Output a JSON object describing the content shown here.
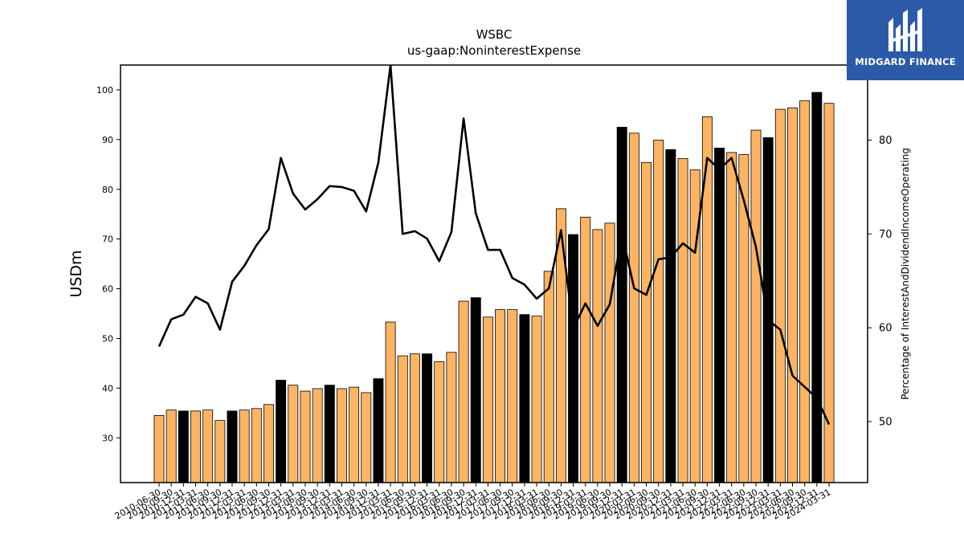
{
  "logo": {
    "name": "MIDGARD FINANCE"
  },
  "colors": {
    "bar_default": "#fdb462",
    "bar_highlight": "#000000",
    "line": "#000000"
  },
  "chart_data": {
    "type": "bar",
    "title": "WSBC",
    "subtitle": "us-gaap:NoninterestExpense",
    "ylabel": "USDm",
    "y2label": "Percentage of InterestAndDividendIncomeOperating",
    "ylim": [
      21,
      105
    ],
    "y2lim": [
      43.5,
      88
    ],
    "yticks": [
      30,
      40,
      50,
      60,
      70,
      80,
      90,
      100
    ],
    "y2ticks": [
      50,
      60,
      70,
      80
    ],
    "x": [
      "2010-06-30",
      "2010-09-30",
      "2010-12-31",
      "2011-03-31",
      "2011-06-30",
      "2011-09-30",
      "2011-12-31",
      "2012-03-31",
      "2012-06-30",
      "2012-09-30",
      "2012-12-31",
      "2013-03-31",
      "2013-06-30",
      "2013-09-30",
      "2013-12-31",
      "2014-03-31",
      "2014-06-30",
      "2014-09-30",
      "2014-12-31",
      "2015-03-31",
      "2015-06-30",
      "2015-09-30",
      "2015-12-31",
      "2016-03-31",
      "2016-06-30",
      "2016-09-30",
      "2016-12-31",
      "2017-03-31",
      "2017-06-30",
      "2017-09-30",
      "2017-12-31",
      "2018-03-31",
      "2018-06-30",
      "2018-09-30",
      "2018-12-31",
      "2019-03-31",
      "2019-06-30",
      "2019-09-30",
      "2019-12-31",
      "2020-03-31",
      "2020-06-30",
      "2020-09-30",
      "2020-12-31",
      "2021-03-31",
      "2021-06-30",
      "2021-09-30",
      "2021-12-31",
      "2022-03-31",
      "2022-06-30",
      "2022-09-30",
      "2022-12-31",
      "2023-03-31",
      "2023-06-30",
      "2023-09-30",
      "2023-12-31",
      "2024-03-31"
    ],
    "series": [
      {
        "kind": "bar",
        "values": [
          34.5,
          35.6,
          35.4,
          35.4,
          35.6,
          33.5,
          35.4,
          35.6,
          35.9,
          36.7,
          41.6,
          40.6,
          39.4,
          39.9,
          40.6,
          39.9,
          40.2,
          39.1,
          41.9,
          53.3,
          46.5,
          46.9,
          46.9,
          45.3,
          47.2,
          57.5,
          58.2,
          54.3,
          55.8,
          55.8,
          54.8,
          54.5,
          63.5,
          76.1,
          70.9,
          74.4,
          71.9,
          73.2,
          92.5,
          91.3,
          85.4,
          89.9,
          88.0,
          86.2,
          83.9,
          94.6,
          88.3,
          87.4,
          87.0,
          91.9,
          90.4,
          96.1,
          96.4,
          97.8,
          99.5,
          97.3
        ],
        "highlight": [
          false,
          false,
          true,
          false,
          false,
          false,
          true,
          false,
          false,
          false,
          true,
          false,
          false,
          false,
          true,
          false,
          false,
          false,
          true,
          false,
          false,
          false,
          true,
          false,
          false,
          false,
          true,
          false,
          false,
          false,
          true,
          false,
          false,
          false,
          true,
          false,
          false,
          false,
          true,
          false,
          false,
          false,
          true,
          false,
          false,
          false,
          true,
          false,
          false,
          false,
          true,
          false,
          false,
          false,
          true,
          false
        ]
      },
      {
        "kind": "line",
        "axis": "right",
        "values": [
          58.0,
          60.9,
          61.4,
          63.3,
          62.6,
          59.8,
          64.9,
          66.6,
          68.8,
          70.5,
          78.1,
          74.3,
          72.6,
          73.7,
          75.1,
          75.0,
          74.6,
          72.4,
          77.6,
          88.0,
          70.0,
          70.3,
          69.5,
          67.1,
          70.2,
          82.3,
          72.2,
          68.3,
          68.3,
          65.3,
          64.6,
          63.1,
          64.2,
          70.4,
          59.9,
          62.6,
          60.2,
          62.5,
          70.0,
          64.2,
          63.5,
          67.3,
          67.5,
          69.0,
          68.0,
          78.1,
          76.9,
          78.1,
          73.6,
          68.6,
          60.8,
          59.8,
          54.9,
          53.7,
          52.5,
          49.7
        ]
      }
    ]
  }
}
